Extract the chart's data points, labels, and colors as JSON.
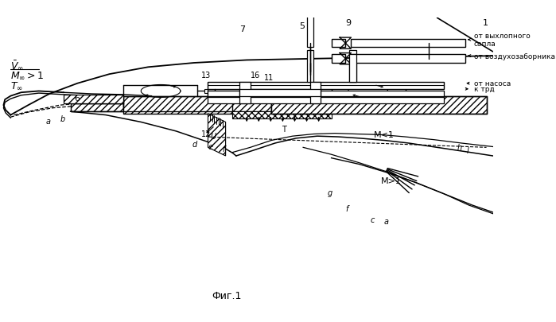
{
  "bg_color": "#ffffff",
  "lc": "#000000",
  "fig_label": "Фиг.1",
  "from_nozzle": "от выхлопного\nсопла",
  "from_intake": "от воздухозаборника",
  "from_pump": "от насоса",
  "to_trd": "к трд",
  "M_lt1": "M<1",
  "M_gt1": "M>1"
}
